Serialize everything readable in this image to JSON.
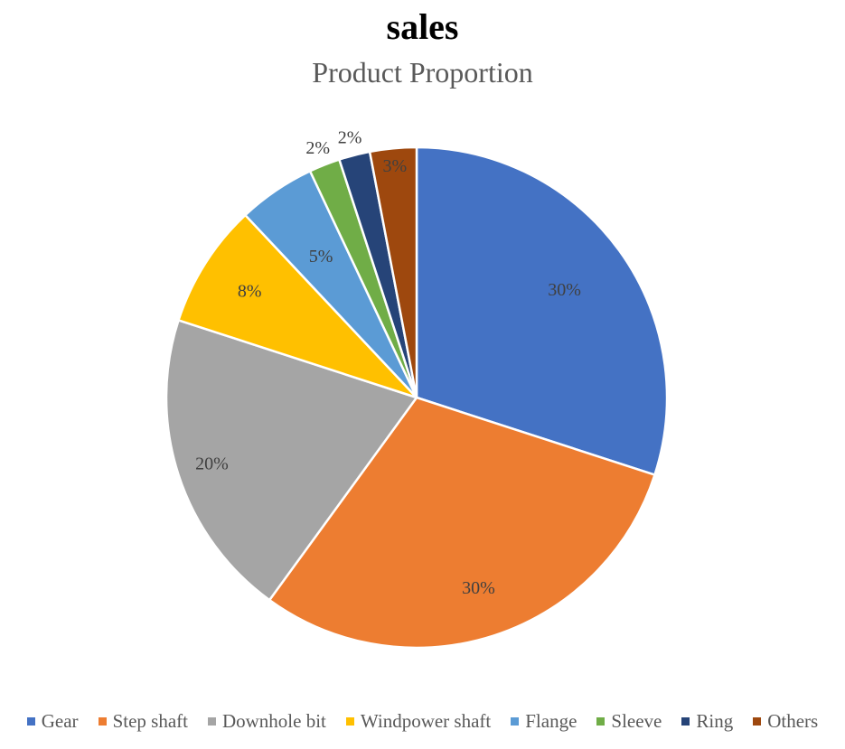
{
  "chart_data": {
    "type": "pie",
    "title": "sales",
    "subtitle": "Product Proportion",
    "categories": [
      "Gear",
      "Step shaft",
      "Downhole bit",
      "Windpower shaft",
      "Flange",
      "Sleeve",
      "Ring",
      "Others"
    ],
    "values": [
      30,
      30,
      20,
      8,
      5,
      2,
      2,
      3
    ],
    "labels": [
      "30%",
      "30%",
      "20%",
      "8%",
      "5%",
      "2%",
      "2%",
      "3%"
    ],
    "colors": [
      "#4472C4",
      "#ED7D31",
      "#A5A5A5",
      "#FFC000",
      "#5B9BD5",
      "#70AD47",
      "#264478",
      "#9E480E"
    ],
    "legend_position": "bottom"
  }
}
